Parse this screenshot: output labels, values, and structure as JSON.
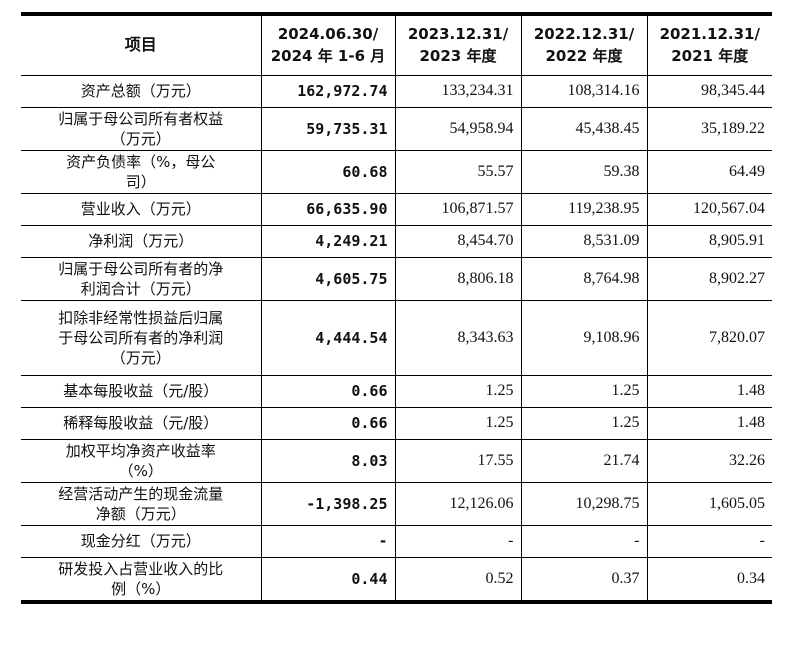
{
  "header": {
    "item": "项目",
    "columns": [
      [
        "2024.06.30/",
        "2024 年 1-6 月"
      ],
      [
        "2023.12.31/",
        "2023 年度"
      ],
      [
        "2022.12.31/",
        "2022 年度"
      ],
      [
        "2021.12.31/",
        "2021 年度"
      ]
    ]
  },
  "rows": [
    {
      "label": [
        "资产总额（万元）"
      ],
      "values": [
        "162,972.74",
        "133,234.31",
        "108,314.16",
        "98,345.44"
      ]
    },
    {
      "label": [
        "归属于母公司所有者权益",
        "（万元）"
      ],
      "values": [
        "59,735.31",
        "54,958.94",
        "45,438.45",
        "35,189.22"
      ]
    },
    {
      "label": [
        "资产负债率（%，母公",
        "司）"
      ],
      "values": [
        "60.68",
        "55.57",
        "59.38",
        "64.49"
      ]
    },
    {
      "label": [
        "营业收入（万元）"
      ],
      "values": [
        "66,635.90",
        "106,871.57",
        "119,238.95",
        "120,567.04"
      ]
    },
    {
      "label": [
        "净利润（万元）"
      ],
      "values": [
        "4,249.21",
        "8,454.70",
        "8,531.09",
        "8,905.91"
      ]
    },
    {
      "label": [
        "归属于母公司所有者的净",
        "利润合计（万元）"
      ],
      "values": [
        "4,605.75",
        "8,806.18",
        "8,764.98",
        "8,902.27"
      ]
    },
    {
      "label": [
        "扣除非经常性损益后归属",
        "于母公司所有者的净利润",
        "（万元）"
      ],
      "values": [
        "4,444.54",
        "8,343.63",
        "9,108.96",
        "7,820.07"
      ]
    },
    {
      "label": [
        "基本每股收益（元/股）"
      ],
      "values": [
        "0.66",
        "1.25",
        "1.25",
        "1.48"
      ]
    },
    {
      "label": [
        "稀释每股收益（元/股）"
      ],
      "values": [
        "0.66",
        "1.25",
        "1.25",
        "1.48"
      ]
    },
    {
      "label": [
        "加权平均净资产收益率",
        "（%）"
      ],
      "values": [
        "8.03",
        "17.55",
        "21.74",
        "32.26"
      ]
    },
    {
      "label": [
        "经营活动产生的现金流量",
        "净额（万元）"
      ],
      "values": [
        "-1,398.25",
        "12,126.06",
        "10,298.75",
        "1,605.05"
      ]
    },
    {
      "label": [
        "现金分红（万元）"
      ],
      "values": [
        "-",
        "-",
        "-",
        "-"
      ]
    },
    {
      "label": [
        "研发投入占营业收入的比",
        "例（%）"
      ],
      "values": [
        "0.44",
        "0.52",
        "0.37",
        "0.34"
      ]
    }
  ]
}
